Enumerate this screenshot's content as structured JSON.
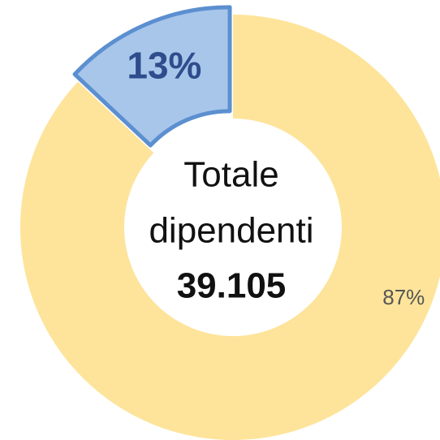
{
  "chart_data": {
    "type": "donut",
    "values": [
      13,
      87
    ],
    "value_labels": [
      "13%",
      "87%"
    ],
    "colors": [
      "#a8c6ea",
      "#fde49a"
    ],
    "center_text": [
      "Totale",
      "dipendenti",
      "39.105"
    ]
  }
}
